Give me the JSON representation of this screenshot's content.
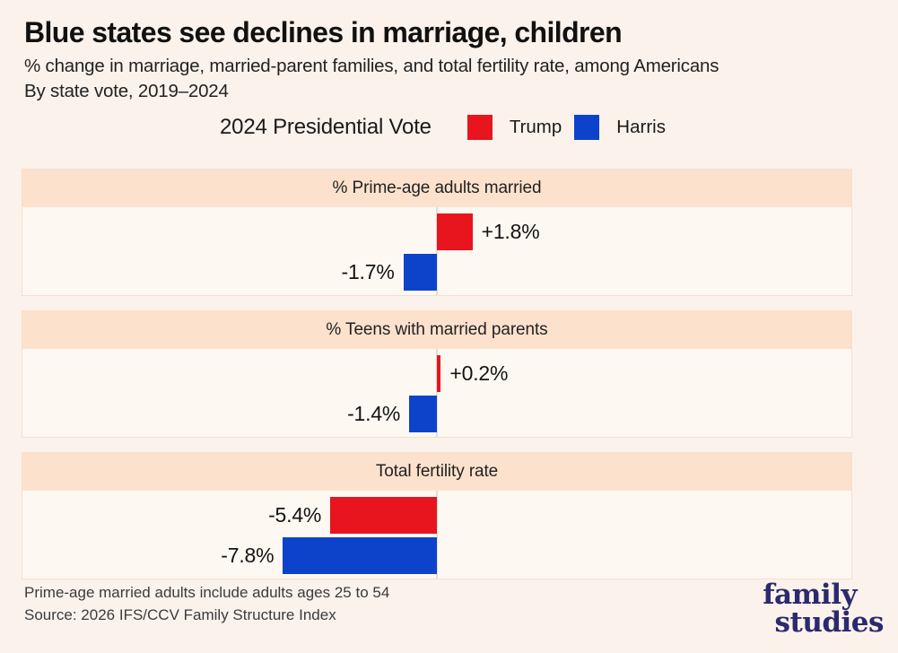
{
  "page": {
    "title": "Blue states see declines in marriage, children",
    "subtitle_line1": "% change in marriage, married-parent families, and total fertility rate, among Americans",
    "subtitle_line2": "By state vote, 2019–2024",
    "background_color": "#fbf2ec"
  },
  "legend": {
    "title": "2024 Presidential Vote",
    "items": [
      {
        "label": "Trump",
        "color": "#e8141e"
      },
      {
        "label": "Harris",
        "color": "#0d43cb"
      }
    ]
  },
  "chart_data": [
    {
      "type": "bar",
      "orientation": "horizontal",
      "title": "% Prime-age adults married",
      "categories": [
        "Trump",
        "Harris"
      ],
      "values": [
        1.8,
        -1.7
      ],
      "labels": [
        "+1.8%",
        "-1.7%"
      ],
      "colors": [
        "#e8141e",
        "#0d43cb"
      ],
      "baseline": 0,
      "x_range": [
        -21,
        21
      ],
      "grid": false,
      "legend_position": "top"
    },
    {
      "type": "bar",
      "orientation": "horizontal",
      "title": "% Teens with married parents",
      "categories": [
        "Trump",
        "Harris"
      ],
      "values": [
        0.2,
        -1.4
      ],
      "labels": [
        "+0.2%",
        "-1.4%"
      ],
      "colors": [
        "#e8141e",
        "#0d43cb"
      ],
      "baseline": 0,
      "x_range": [
        -21,
        21
      ],
      "grid": false,
      "legend_position": "top"
    },
    {
      "type": "bar",
      "orientation": "horizontal",
      "title": "Total fertility rate",
      "categories": [
        "Trump",
        "Harris"
      ],
      "values": [
        -5.4,
        -7.8
      ],
      "labels": [
        "-5.4%",
        "-7.8%"
      ],
      "colors": [
        "#e8141e",
        "#0d43cb"
      ],
      "baseline": 0,
      "x_range": [
        -21,
        21
      ],
      "grid": false,
      "legend_position": "top"
    }
  ],
  "footer": {
    "note": "Prime-age married adults include adults ages 25 to 54",
    "source": "Source: 2026 IFS/CCV Family Structure Index"
  },
  "logo": {
    "line1": "family",
    "line2": "studies",
    "color": "#2b2a6e"
  }
}
